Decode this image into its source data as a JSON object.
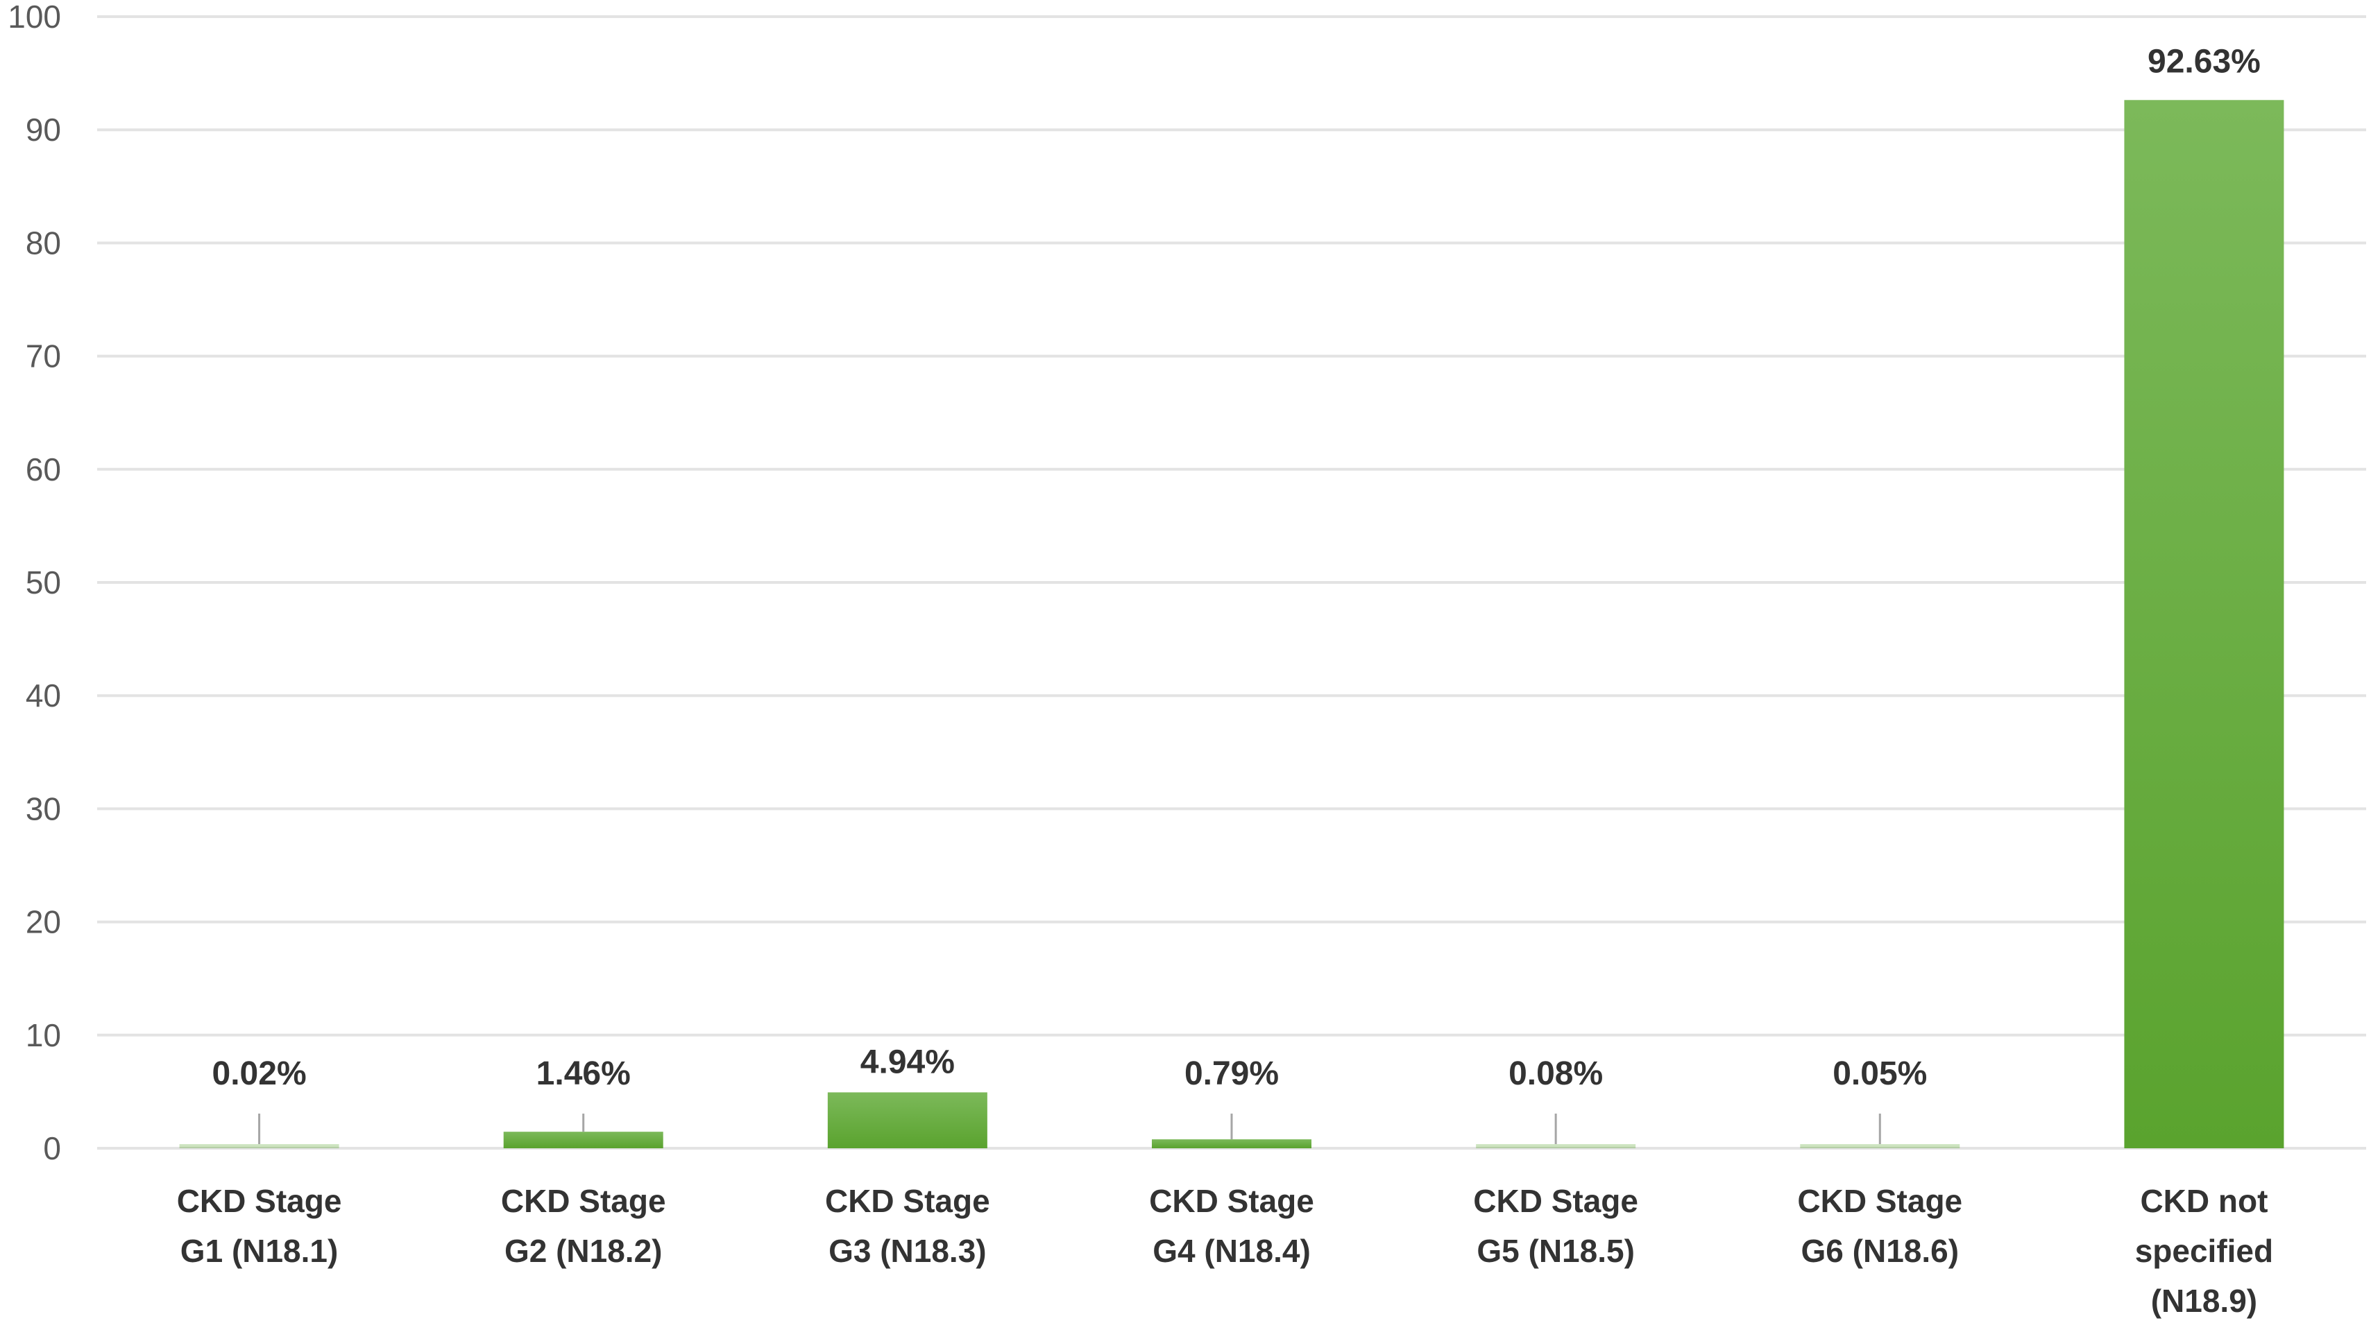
{
  "chart_data": {
    "type": "bar",
    "categories": [
      [
        "CKD Stage",
        "G1 (N18.1)"
      ],
      [
        "CKD Stage",
        "G2 (N18.2)"
      ],
      [
        "CKD Stage",
        "G3 (N18.3)"
      ],
      [
        "CKD Stage",
        "G4 (N18.4)"
      ],
      [
        "CKD Stage",
        "G5 (N18.5)"
      ],
      [
        "CKD Stage",
        "G6 (N18.6)"
      ],
      [
        "CKD not",
        "specified",
        "(N18.9)"
      ]
    ],
    "values": [
      0.02,
      1.46,
      4.94,
      0.79,
      0.08,
      0.05,
      92.63
    ],
    "data_labels": [
      "0.02%",
      "1.46%",
      "4.94%",
      "0.79%",
      "0.08%",
      "0.05%",
      "92.63%"
    ],
    "title": "",
    "xlabel": "",
    "ylabel": "",
    "ylim": [
      0,
      100
    ],
    "yticks": [
      "0",
      "10",
      "20",
      "30",
      "40",
      "50",
      "60",
      "70",
      "80",
      "90",
      "100"
    ],
    "grid": true,
    "legend": "none",
    "colors": {
      "bar_top": "#7cb95a",
      "bar_bottom": "#5aa32e",
      "gridline": "#e3e3e3",
      "leader_line": "#a6a6a6",
      "text": "#333333",
      "axis_text": "#595959"
    }
  }
}
